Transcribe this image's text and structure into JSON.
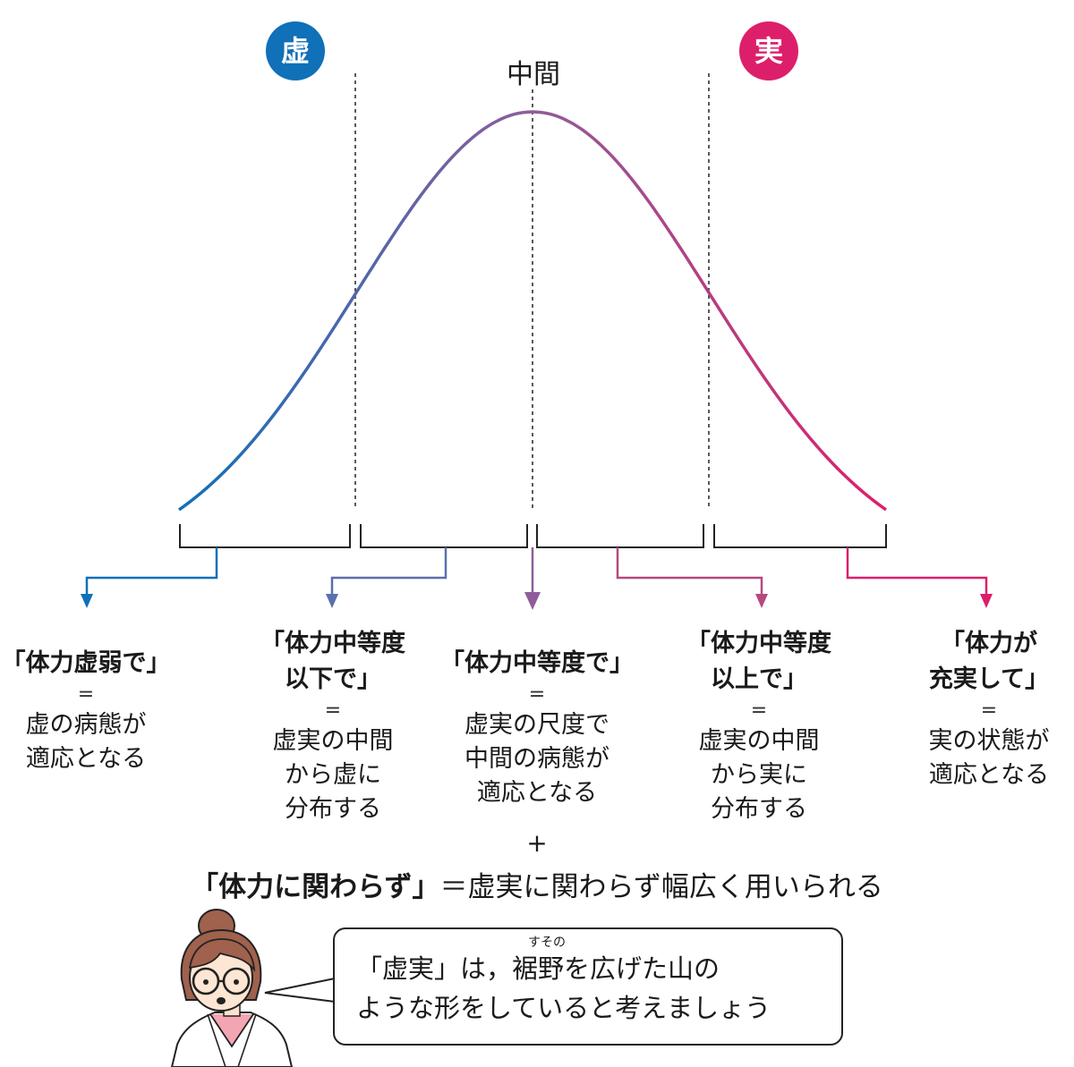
{
  "colors": {
    "kyo": "#1070b8",
    "jitsu": "#dd1f6b",
    "mid": "#8f5d9a",
    "line": "#222222"
  },
  "labels": {
    "kyo": "虚",
    "jitsu": "実",
    "middle": "中間"
  },
  "columns": [
    {
      "title": "「体力虚弱で」",
      "eq": "=",
      "desc": "虚の病態が\n適応となる"
    },
    {
      "title": "「体力中等度\n以下で」",
      "eq": "=",
      "desc": "虚実の中間\nから虚に\n分布する"
    },
    {
      "title": "「体力中等度で」",
      "eq": "=",
      "desc": "虚実の尺度で\n中間の病態が\n適応となる"
    },
    {
      "title": "「体力中等度\n以上で」",
      "eq": "=",
      "desc": "虚実の中間\nから実に\n分布する"
    },
    {
      "title": "「体力が\n充実して」",
      "eq": "=",
      "desc": "実の状態が\n適応となる"
    }
  ],
  "plus": "+",
  "bottom": {
    "bold": "「体力に関わらず」",
    "rest": "＝虚実に関わらず幅広く用いられる"
  },
  "bubble": {
    "ruby": "すその",
    "line1": "「虚実」は，裾野を広げた山の",
    "line2": "ような形をしていると考えましょう"
  }
}
